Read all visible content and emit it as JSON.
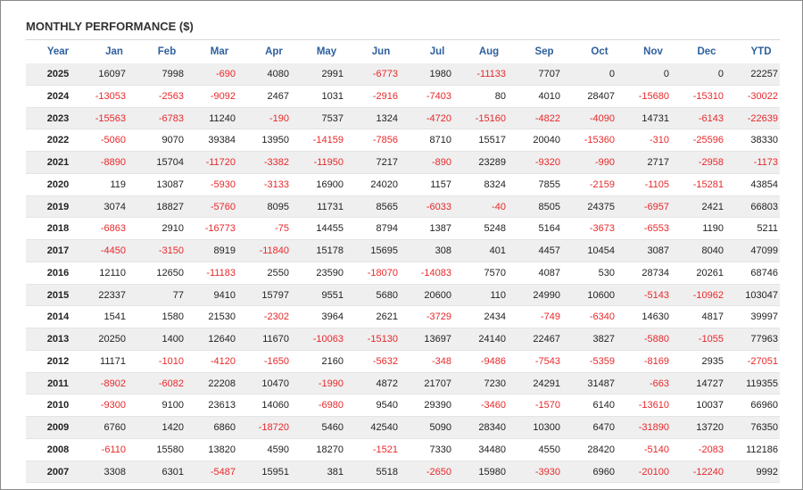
{
  "title": "MONTHLY PERFORMANCE ($)",
  "table": {
    "columns": [
      "Year",
      "Jan",
      "Feb",
      "Mar",
      "Apr",
      "May",
      "Jun",
      "Jul",
      "Aug",
      "Sep",
      "Oct",
      "Nov",
      "Dec",
      "YTD"
    ],
    "rows": [
      [
        "2025",
        16097,
        7998,
        -690,
        4080,
        2991,
        -6773,
        1980,
        -11133,
        7707,
        0,
        0,
        0,
        22257
      ],
      [
        "2024",
        -13053,
        -2563,
        -9092,
        2467,
        1031,
        -2916,
        -7403,
        80,
        4010,
        28407,
        -15680,
        -15310,
        -30022
      ],
      [
        "2023",
        -15563,
        -6783,
        11240,
        -190,
        7537,
        1324,
        -4720,
        -15160,
        -4822,
        -4090,
        14731,
        -6143,
        -22639
      ],
      [
        "2022",
        -5060,
        9070,
        39384,
        13950,
        -14159,
        -7856,
        8710,
        15517,
        20040,
        -15360,
        -310,
        -25596,
        38330
      ],
      [
        "2021",
        -8890,
        15704,
        -11720,
        -3382,
        -11950,
        7217,
        -890,
        23289,
        -9320,
        -990,
        2717,
        -2958,
        -1173
      ],
      [
        "2020",
        119,
        13087,
        -5930,
        -3133,
        16900,
        24020,
        1157,
        8324,
        7855,
        -2159,
        -1105,
        -15281,
        43854
      ],
      [
        "2019",
        3074,
        18827,
        -5760,
        8095,
        11731,
        8565,
        -6033,
        -40,
        8505,
        24375,
        -6957,
        2421,
        66803
      ],
      [
        "2018",
        -6863,
        2910,
        -16773,
        -75,
        14455,
        8794,
        1387,
        5248,
        5164,
        -3673,
        -6553,
        1190,
        5211
      ],
      [
        "2017",
        -4450,
        -3150,
        8919,
        -11840,
        15178,
        15695,
        308,
        401,
        4457,
        10454,
        3087,
        8040,
        47099
      ],
      [
        "2016",
        12110,
        12650,
        -11183,
        2550,
        23590,
        -18070,
        -14083,
        7570,
        4087,
        530,
        28734,
        20261,
        68746
      ],
      [
        "2015",
        22337,
        77,
        9410,
        15797,
        9551,
        5680,
        20600,
        110,
        24990,
        10600,
        -5143,
        -10962,
        103047
      ],
      [
        "2014",
        1541,
        1580,
        21530,
        -2302,
        3964,
        2621,
        -3729,
        2434,
        -749,
        -6340,
        14630,
        4817,
        39997
      ],
      [
        "2013",
        20250,
        1400,
        12640,
        11670,
        -10063,
        -15130,
        13697,
        24140,
        22467,
        3827,
        -5880,
        -1055,
        77963
      ],
      [
        "2012",
        11171,
        -1010,
        -4120,
        -1650,
        2160,
        -5632,
        -348,
        -9486,
        -7543,
        -5359,
        -8169,
        2935,
        -27051
      ],
      [
        "2011",
        -8902,
        -6082,
        22208,
        10470,
        -1990,
        4872,
        21707,
        7230,
        24291,
        31487,
        -663,
        14727,
        119355
      ],
      [
        "2010",
        -9300,
        9100,
        23613,
        14060,
        -6980,
        9540,
        29390,
        -3460,
        -1570,
        6140,
        -13610,
        10037,
        66960
      ],
      [
        "2009",
        6760,
        1420,
        6860,
        -18720,
        5460,
        42540,
        5090,
        28340,
        10300,
        6470,
        -31890,
        13720,
        76350
      ],
      [
        "2008",
        -6110,
        15580,
        13820,
        4590,
        18270,
        -1521,
        7330,
        34480,
        4550,
        28420,
        -5140,
        -2083,
        112186
      ],
      [
        "2007",
        3308,
        6301,
        -5487,
        15951,
        381,
        5518,
        -2650,
        15980,
        -3930,
        6960,
        -20100,
        -12240,
        9992
      ]
    ]
  }
}
